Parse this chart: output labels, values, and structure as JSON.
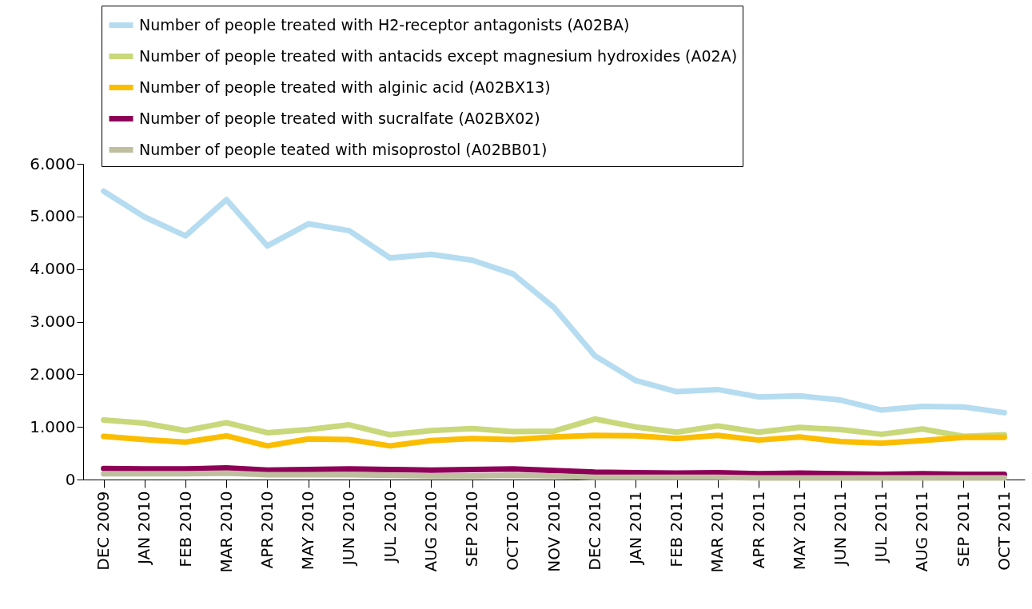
{
  "chart_data": {
    "type": "line",
    "categories": [
      "DEC 2009",
      "JAN 2010",
      "FEB 2010",
      "MAR 2010",
      "APR 2010",
      "MAY 2010",
      "JUN 2010",
      "JUL 2010",
      "AUG 2010",
      "SEP 2010",
      "OCT 2010",
      "NOV 2010",
      "DEC 2010",
      "JAN 2011",
      "FEB 2011",
      "MAR 2011",
      "APR 2011",
      "MAY 2011",
      "JUN 2011",
      "JUL 2011",
      "AUG 2011",
      "SEP 2011",
      "OCT 2011"
    ],
    "series": [
      {
        "name": "Number of people treated with H2-receptor antagonists (A02BA)",
        "color": "#b5dcf0",
        "values": [
          5480,
          4990,
          4630,
          5320,
          4440,
          4860,
          4730,
          4210,
          4280,
          4170,
          3910,
          3270,
          2350,
          1880,
          1670,
          1710,
          1570,
          1590,
          1510,
          1320,
          1390,
          1380,
          1270
        ]
      },
      {
        "name": "Number of people treated with antacids except magnesium hydroxides (A02A)",
        "color": "#c8d87a",
        "values": [
          1130,
          1070,
          930,
          1080,
          890,
          950,
          1040,
          850,
          930,
          970,
          910,
          920,
          1150,
          1000,
          900,
          1020,
          900,
          990,
          950,
          860,
          960,
          820,
          850
        ]
      },
      {
        "name": "Number of people treated with alginic acid (A02BX13)",
        "color": "#fbbd00",
        "values": [
          820,
          760,
          710,
          830,
          640,
          770,
          760,
          640,
          740,
          780,
          760,
          810,
          840,
          830,
          780,
          840,
          750,
          810,
          720,
          690,
          740,
          800,
          800
        ]
      },
      {
        "name": "Number of people treated with sucralfate (A02BX02)",
        "color": "#8e0057",
        "values": [
          210,
          200,
          200,
          220,
          180,
          190,
          200,
          190,
          180,
          190,
          200,
          170,
          140,
          130,
          120,
          130,
          110,
          120,
          110,
          100,
          110,
          100,
          100
        ]
      },
      {
        "name": "Number of people teated with misoprostol (A02BB01)",
        "color": "#bfbfa0",
        "values": [
          110,
          110,
          110,
          120,
          90,
          90,
          90,
          80,
          70,
          70,
          80,
          70,
          40,
          40,
          40,
          40,
          30,
          30,
          30,
          30,
          30,
          30,
          30
        ]
      }
    ],
    "ylim": [
      0,
      6000
    ],
    "yticks": [
      {
        "value": 0,
        "label": "0"
      },
      {
        "value": 1000,
        "label": "1.000"
      },
      {
        "value": 2000,
        "label": "2.000"
      },
      {
        "value": 3000,
        "label": "3.000"
      },
      {
        "value": 4000,
        "label": "4.000"
      },
      {
        "value": 5000,
        "label": "5.000"
      },
      {
        "value": 6000,
        "label": "6.000"
      }
    ],
    "legend": "top",
    "grid": false,
    "marker": "none",
    "line_style": "solid"
  }
}
